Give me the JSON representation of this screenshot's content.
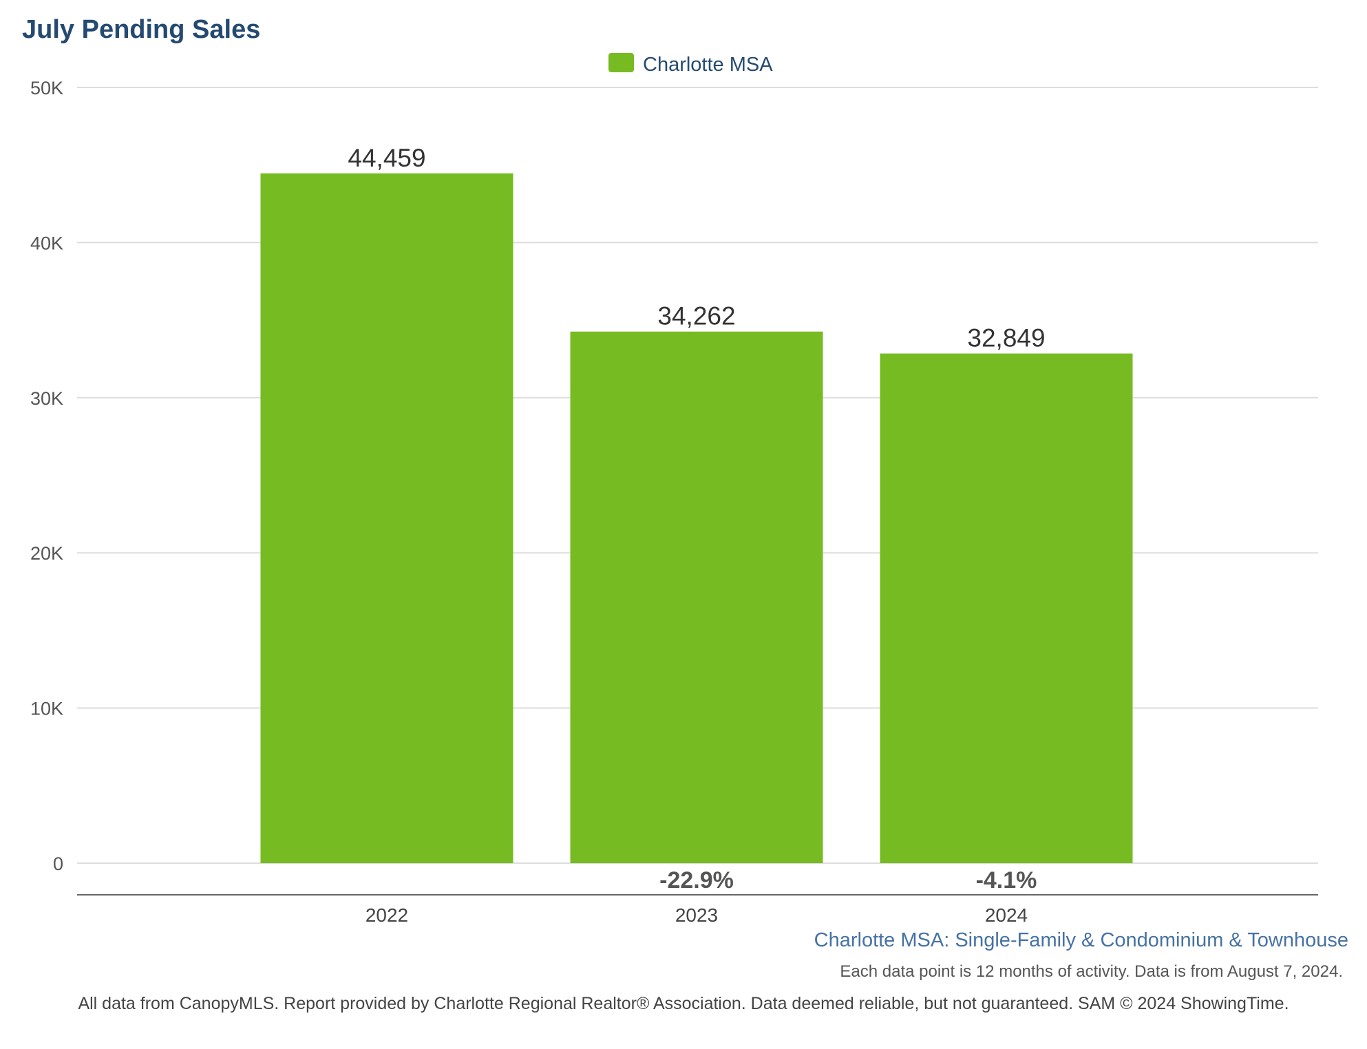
{
  "chart_data": {
    "type": "bar",
    "title": "July Pending Sales",
    "categories": [
      "2022",
      "2023",
      "2024"
    ],
    "series": [
      {
        "name": "Charlotte MSA",
        "values": [
          44459,
          34262,
          32849
        ],
        "value_labels": [
          "44,459",
          "34,262",
          "32,849"
        ],
        "change_labels": [
          "",
          "-22.9%",
          "-4.1%"
        ]
      }
    ],
    "ylim": [
      0,
      50000
    ],
    "yticks": [
      0,
      10000,
      20000,
      30000,
      40000,
      50000
    ],
    "ytick_labels": [
      "0",
      "10K",
      "20K",
      "30K",
      "40K",
      "50K"
    ],
    "xlabel": "",
    "ylabel": "",
    "grid": true,
    "legend_position": "top-center",
    "colors": {
      "bar": "#77bb22",
      "title": "#244a72",
      "legend_text": "#244a72",
      "subtitle": "#4672a4",
      "grid": "#dddddd",
      "axis": "#666666"
    }
  },
  "subtitle": "Charlotte MSA: Single-Family & Condominium & Townhouse",
  "data_note": "Each data point is 12 months of activity. Data is from August 7, 2024.",
  "footer": "All data from CanopyMLS. Report provided by Charlotte Regional Realtor® Association. Data deemed reliable, but not guaranteed. SAM © 2024 ShowingTime."
}
